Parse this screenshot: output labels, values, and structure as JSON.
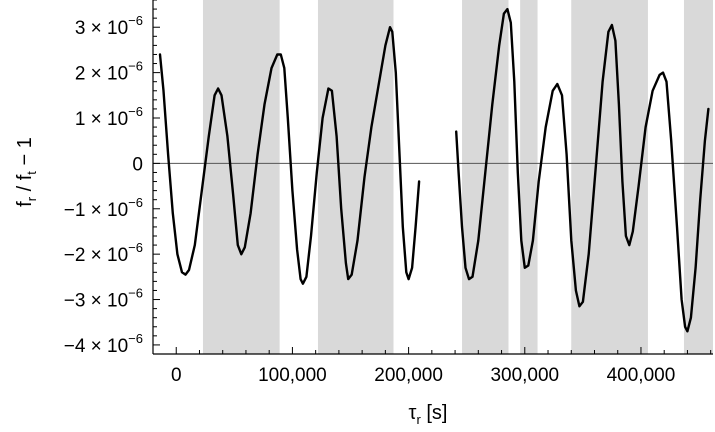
{
  "chart_data": {
    "type": "line",
    "title": "",
    "xlabel": {
      "main": "τ",
      "sub": "r",
      "unit": " [s]"
    },
    "ylabel": {
      "p1": "f",
      "s1": "r",
      "p2": " / f",
      "s2": "t",
      "p3": " − 1"
    },
    "xlim": [
      -20000,
      462000
    ],
    "ylim": [
      -4.2e-06,
      3.6e-06
    ],
    "x_ticks": [
      {
        "value": 0,
        "label": "0"
      },
      {
        "value": 100000,
        "label": "100,000"
      },
      {
        "value": 200000,
        "label": "200,000"
      },
      {
        "value": 300000,
        "label": "300,000"
      },
      {
        "value": 400000,
        "label": "400,000"
      }
    ],
    "y_ticks": [
      {
        "value": 3e-06,
        "mant": "3",
        "exp": "−6"
      },
      {
        "value": 2e-06,
        "mant": "2",
        "exp": "−6"
      },
      {
        "value": 1e-06,
        "mant": "1",
        "exp": "−6"
      },
      {
        "value": 0,
        "plain": "0"
      },
      {
        "value": -1e-06,
        "mant": "−1",
        "exp": "−6"
      },
      {
        "value": -2e-06,
        "mant": "−2",
        "exp": "−6"
      },
      {
        "value": -3e-06,
        "mant": "−3",
        "exp": "−6"
      },
      {
        "value": -4e-06,
        "mant": "−4",
        "exp": "−6"
      }
    ],
    "shaded_intervals": [
      [
        23000,
        89000
      ],
      [
        122000,
        187000
      ],
      [
        246000,
        286000
      ],
      [
        296000,
        311000
      ],
      [
        340000,
        406000
      ],
      [
        437000,
        462000
      ]
    ],
    "zero_line": true,
    "series": [
      {
        "color": "#000000",
        "segments": [
          [
            [
              -14000,
              2.4e-06
            ],
            [
              -11000,
              1.6e-06
            ],
            [
              -7000,
              2e-07
            ],
            [
              -3000,
              -1.1e-06
            ],
            [
              1000,
              -2e-06
            ],
            [
              5000,
              -2.4e-06
            ],
            [
              8000,
              -2.45e-06
            ],
            [
              11000,
              -2.35e-06
            ],
            [
              16000,
              -1.8e-06
            ],
            [
              22000,
              -6e-07
            ],
            [
              28000,
              6e-07
            ],
            [
              33000,
              1.5e-06
            ],
            [
              36000,
              1.65e-06
            ],
            [
              39000,
              1.5e-06
            ],
            [
              44000,
              6e-07
            ],
            [
              49000,
              -7e-07
            ],
            [
              53000,
              -1.8e-06
            ],
            [
              56000,
              -2e-06
            ],
            [
              59000,
              -1.85e-06
            ],
            [
              64000,
              -1.1e-06
            ],
            [
              70000,
              2e-07
            ],
            [
              76000,
              1.3e-06
            ],
            [
              82000,
              2.1e-06
            ],
            [
              87000,
              2.4e-06
            ],
            [
              90000,
              2.4e-06
            ],
            [
              93000,
              2.1e-06
            ],
            [
              96000,
              1e-06
            ],
            [
              100000,
              -6e-07
            ],
            [
              104000,
              -1.9e-06
            ],
            [
              107000,
              -2.55e-06
            ],
            [
              109000,
              -2.65e-06
            ],
            [
              112000,
              -2.5e-06
            ],
            [
              116000,
              -1.6e-06
            ],
            [
              121000,
              -2e-07
            ],
            [
              126000,
              1e-06
            ],
            [
              131000,
              1.65e-06
            ],
            [
              134000,
              1.6e-06
            ],
            [
              138000,
              6e-07
            ],
            [
              142000,
              -1e-06
            ],
            [
              146000,
              -2.2e-06
            ],
            [
              148000,
              -2.55e-06
            ],
            [
              151000,
              -2.45e-06
            ],
            [
              156000,
              -1.7e-06
            ],
            [
              162000,
              -3e-07
            ],
            [
              168000,
              8e-07
            ],
            [
              174000,
              1.7e-06
            ],
            [
              180000,
              2.6e-06
            ],
            [
              184000,
              3e-06
            ],
            [
              186000,
              2.9e-06
            ],
            [
              189000,
              2e-06
            ],
            [
              192000,
              3e-07
            ],
            [
              195000,
              -1.4e-06
            ],
            [
              198000,
              -2.4e-06
            ],
            [
              200000,
              -2.55e-06
            ],
            [
              203000,
              -2.3e-06
            ],
            [
              206000,
              -1.4e-06
            ],
            [
              209000,
              -4e-07
            ]
          ],
          [
            [
              241000,
              7e-07
            ],
            [
              243000,
              -2e-07
            ],
            [
              246000,
              -1.4e-06
            ],
            [
              249000,
              -2.3e-06
            ],
            [
              252000,
              -2.55e-06
            ],
            [
              255000,
              -2.5e-06
            ],
            [
              260000,
              -1.7e-06
            ],
            [
              266000,
              -2e-07
            ],
            [
              272000,
              1.3e-06
            ],
            [
              278000,
              2.6e-06
            ],
            [
              282000,
              3.3e-06
            ],
            [
              285000,
              3.4e-06
            ],
            [
              288000,
              3.1e-06
            ],
            [
              291000,
              1.8e-06
            ],
            [
              294000,
              -2e-07
            ],
            [
              297000,
              -1.7e-06
            ],
            [
              300000,
              -2.3e-06
            ],
            [
              303000,
              -2.25e-06
            ],
            [
              307000,
              -1.7e-06
            ],
            [
              312000,
              -4e-07
            ],
            [
              318000,
              8e-07
            ],
            [
              324000,
              1.6e-06
            ],
            [
              328000,
              1.75e-06
            ],
            [
              332000,
              1.5e-06
            ],
            [
              336000,
              2e-07
            ],
            [
              340000,
              -1.7e-06
            ],
            [
              344000,
              -2.8e-06
            ],
            [
              347000,
              -3.15e-06
            ],
            [
              350000,
              -3.05e-06
            ],
            [
              355000,
              -2e-06
            ],
            [
              361000,
              -1e-07
            ],
            [
              367000,
              1.8e-06
            ],
            [
              372000,
              2.9e-06
            ],
            [
              375000,
              3.05e-06
            ],
            [
              378000,
              2.7e-06
            ],
            [
              381000,
              1.3e-06
            ],
            [
              384000,
              -4e-07
            ],
            [
              387000,
              -1.6e-06
            ],
            [
              390000,
              -1.8e-06
            ],
            [
              393000,
              -1.5e-06
            ],
            [
              398000,
              -5e-07
            ],
            [
              404000,
              8e-07
            ],
            [
              410000,
              1.6e-06
            ],
            [
              416000,
              1.95e-06
            ],
            [
              419000,
              2e-06
            ],
            [
              422000,
              1.8e-06
            ],
            [
              426000,
              5e-07
            ],
            [
              431000,
              -1.4e-06
            ],
            [
              435000,
              -3e-06
            ],
            [
              438000,
              -3.6e-06
            ],
            [
              440000,
              -3.7e-06
            ],
            [
              443000,
              -3.4e-06
            ],
            [
              447000,
              -2.3e-06
            ],
            [
              451000,
              -8e-07
            ],
            [
              455000,
              5e-07
            ],
            [
              458000,
              1.2e-06
            ]
          ]
        ]
      }
    ]
  }
}
